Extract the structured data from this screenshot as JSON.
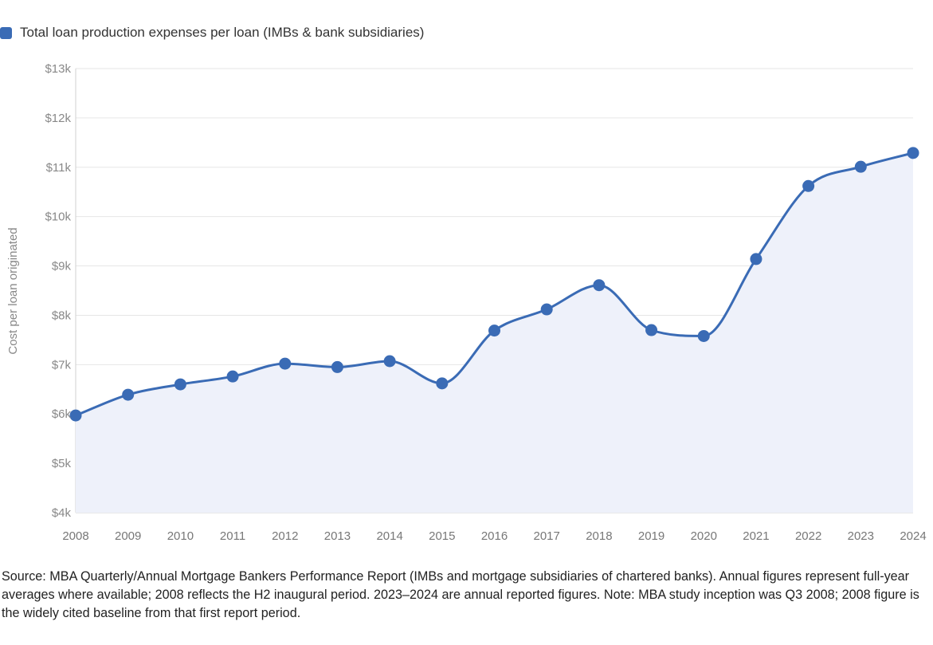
{
  "legend": {
    "label": "Total loan production expenses per loan (IMBs & bank subsidiaries)"
  },
  "colors": {
    "series": "#3a6bb5",
    "area_fill": "#eef1fa",
    "grid": "#e6e6e6",
    "axis": "#d0d0d0"
  },
  "chart_data": {
    "type": "line",
    "title": "",
    "xlabel": "",
    "ylabel": "Cost per loan originated",
    "x": [
      "2008",
      "2009",
      "2010",
      "2011",
      "2012",
      "2013",
      "2014",
      "2015",
      "2016",
      "2017",
      "2018",
      "2019",
      "2020",
      "2021",
      "2022",
      "2023",
      "2024"
    ],
    "series": [
      {
        "name": "Total loan production expenses per loan (IMBs & bank subsidiaries)",
        "values": [
          5970,
          6390,
          6600,
          6760,
          7020,
          6950,
          7070,
          6620,
          7690,
          8120,
          8610,
          7700,
          7580,
          9140,
          10620,
          11010,
          11290
        ],
        "fill_area": true
      }
    ],
    "ylim": [
      4000,
      13000
    ],
    "y_ticks": [
      4000,
      5000,
      6000,
      7000,
      8000,
      9000,
      10000,
      11000,
      12000,
      13000
    ],
    "y_tick_labels": [
      "$4k",
      "$5k",
      "$6k",
      "$7k",
      "$8k",
      "$9k",
      "$10k",
      "$11k",
      "$12k",
      "$13k"
    ],
    "grid": true,
    "legend_position": "top-left"
  },
  "source_note": "Source: MBA Quarterly/Annual Mortgage Bankers Performance Report (IMBs and mortgage subsidiaries of chartered banks). Annual figures represent full-year averages where available; 2008 reflects the H2 inaugural period. 2023–2024 are annual reported figures. Note: MBA study inception was Q3 2008; 2008 figure is the widely cited baseline from that first report period."
}
